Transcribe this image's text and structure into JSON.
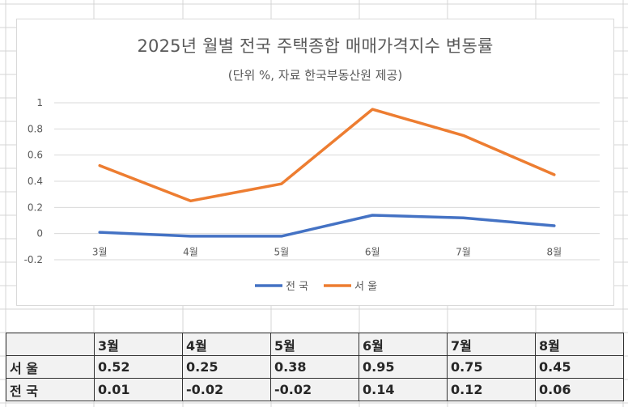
{
  "chart_data": {
    "type": "line",
    "title": "2025년 월별 전국 주택종합 매매가격지수 변동률",
    "subtitle": "(단위 %, 자료 한국부동산원 제공)",
    "xlabel": "",
    "ylabel": "",
    "categories": [
      "3월",
      "4월",
      "5월",
      "6월",
      "7월",
      "8월"
    ],
    "y_ticks": [
      "1",
      "0.8",
      "0.6",
      "0.4",
      "0.2",
      "0",
      "-0.2"
    ],
    "y_tick_values": [
      1,
      0.8,
      0.6,
      0.4,
      0.2,
      0,
      -0.2
    ],
    "ylim": [
      -0.2,
      1
    ],
    "grid": true,
    "legend_position": "bottom",
    "series": [
      {
        "name": "전 국",
        "color": "#4472C4",
        "values": [
          0.01,
          -0.02,
          -0.02,
          0.14,
          0.12,
          0.06
        ]
      },
      {
        "name": "서 울",
        "color": "#ED7D31",
        "values": [
          0.52,
          0.25,
          0.38,
          0.95,
          0.75,
          0.45
        ]
      }
    ]
  },
  "table": {
    "header": [
      "",
      "3월",
      "4월",
      "5월",
      "6월",
      "7월",
      "8월"
    ],
    "rows": [
      {
        "label": "서 울",
        "values": [
          "0.52",
          "0.25",
          "0.38",
          "0.95",
          "0.75",
          "0.45"
        ]
      },
      {
        "label": "전 국",
        "values": [
          "0.01",
          "-0.02",
          "-0.02",
          "0.14",
          "0.12",
          "0.06"
        ]
      }
    ]
  }
}
